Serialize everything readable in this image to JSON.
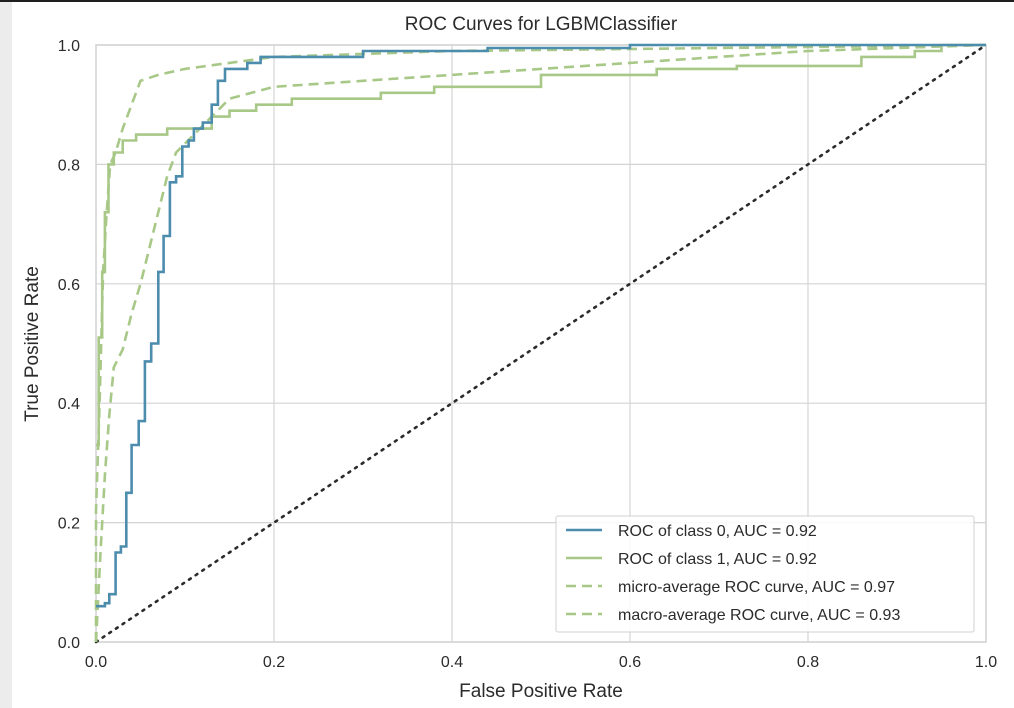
{
  "chart_data": {
    "type": "line",
    "title": "ROC Curves for LGBMClassifier",
    "xlabel": "False Positive Rate",
    "ylabel": "True Positive Rate",
    "xlim": [
      0,
      1
    ],
    "ylim": [
      0,
      1
    ],
    "xticks": [
      "0.0",
      "0.2",
      "0.4",
      "0.6",
      "0.8",
      "1.0"
    ],
    "yticks": [
      "0.0",
      "0.2",
      "0.4",
      "0.6",
      "0.8",
      "1.0"
    ],
    "grid": true,
    "legend_position": "lower-right",
    "series": [
      {
        "name": "ROC of class 0, AUC = 0.92",
        "color": "#4c8cad",
        "dash": "solid",
        "points": [
          [
            0,
            0.06
          ],
          [
            0.01,
            0.06
          ],
          [
            0.01,
            0.065
          ],
          [
            0.015,
            0.065
          ],
          [
            0.015,
            0.08
          ],
          [
            0.022,
            0.08
          ],
          [
            0.022,
            0.15
          ],
          [
            0.028,
            0.15
          ],
          [
            0.028,
            0.16
          ],
          [
            0.034,
            0.16
          ],
          [
            0.034,
            0.25
          ],
          [
            0.04,
            0.25
          ],
          [
            0.04,
            0.33
          ],
          [
            0.048,
            0.33
          ],
          [
            0.048,
            0.37
          ],
          [
            0.055,
            0.37
          ],
          [
            0.055,
            0.47
          ],
          [
            0.062,
            0.47
          ],
          [
            0.062,
            0.5
          ],
          [
            0.07,
            0.5
          ],
          [
            0.07,
            0.62
          ],
          [
            0.076,
            0.62
          ],
          [
            0.076,
            0.68
          ],
          [
            0.083,
            0.68
          ],
          [
            0.083,
            0.77
          ],
          [
            0.09,
            0.77
          ],
          [
            0.09,
            0.78
          ],
          [
            0.097,
            0.78
          ],
          [
            0.097,
            0.83
          ],
          [
            0.104,
            0.83
          ],
          [
            0.104,
            0.84
          ],
          [
            0.11,
            0.84
          ],
          [
            0.11,
            0.86
          ],
          [
            0.12,
            0.86
          ],
          [
            0.12,
            0.87
          ],
          [
            0.13,
            0.87
          ],
          [
            0.13,
            0.9
          ],
          [
            0.137,
            0.9
          ],
          [
            0.137,
            0.94
          ],
          [
            0.145,
            0.94
          ],
          [
            0.145,
            0.96
          ],
          [
            0.17,
            0.96
          ],
          [
            0.17,
            0.97
          ],
          [
            0.185,
            0.97
          ],
          [
            0.185,
            0.98
          ],
          [
            0.3,
            0.98
          ],
          [
            0.3,
            0.99
          ],
          [
            0.44,
            0.99
          ],
          [
            0.44,
            0.995
          ],
          [
            0.6,
            0.995
          ],
          [
            0.6,
            1.0
          ],
          [
            1.0,
            1.0
          ]
        ]
      },
      {
        "name": "ROC of class 1, AUC = 0.92",
        "color": "#a8c888",
        "dash": "solid",
        "points": [
          [
            0,
            0.33
          ],
          [
            0.003,
            0.33
          ],
          [
            0.003,
            0.51
          ],
          [
            0.007,
            0.51
          ],
          [
            0.007,
            0.62
          ],
          [
            0.01,
            0.62
          ],
          [
            0.01,
            0.72
          ],
          [
            0.014,
            0.72
          ],
          [
            0.014,
            0.8
          ],
          [
            0.02,
            0.8
          ],
          [
            0.02,
            0.82
          ],
          [
            0.03,
            0.82
          ],
          [
            0.03,
            0.84
          ],
          [
            0.045,
            0.84
          ],
          [
            0.045,
            0.85
          ],
          [
            0.08,
            0.85
          ],
          [
            0.08,
            0.86
          ],
          [
            0.13,
            0.86
          ],
          [
            0.13,
            0.88
          ],
          [
            0.15,
            0.88
          ],
          [
            0.15,
            0.89
          ],
          [
            0.18,
            0.89
          ],
          [
            0.18,
            0.9
          ],
          [
            0.22,
            0.9
          ],
          [
            0.22,
            0.91
          ],
          [
            0.32,
            0.91
          ],
          [
            0.32,
            0.92
          ],
          [
            0.38,
            0.92
          ],
          [
            0.38,
            0.93
          ],
          [
            0.5,
            0.93
          ],
          [
            0.5,
            0.95
          ],
          [
            0.63,
            0.95
          ],
          [
            0.63,
            0.96
          ],
          [
            0.72,
            0.96
          ],
          [
            0.72,
            0.965
          ],
          [
            0.86,
            0.965
          ],
          [
            0.86,
            0.98
          ],
          [
            0.92,
            0.98
          ],
          [
            0.92,
            0.99
          ],
          [
            0.95,
            0.99
          ],
          [
            0.95,
            1.0
          ],
          [
            1.0,
            1.0
          ]
        ]
      },
      {
        "name": "micro-average ROC curve, AUC = 0.97",
        "color": "#a8c888",
        "dash": "dashed",
        "points": [
          [
            0,
            0
          ],
          [
            0,
            0.22
          ],
          [
            0.004,
            0.4
          ],
          [
            0.008,
            0.62
          ],
          [
            0.012,
            0.72
          ],
          [
            0.016,
            0.8
          ],
          [
            0.022,
            0.82
          ],
          [
            0.03,
            0.86
          ],
          [
            0.04,
            0.9
          ],
          [
            0.05,
            0.94
          ],
          [
            0.07,
            0.95
          ],
          [
            0.1,
            0.96
          ],
          [
            0.2,
            0.98
          ],
          [
            0.4,
            0.99
          ],
          [
            0.7,
            0.995
          ],
          [
            1,
            1
          ]
        ]
      },
      {
        "name": "macro-average ROC curve, AUC = 0.93",
        "color": "#a8c888",
        "dash": "dashed",
        "points": [
          [
            0,
            0
          ],
          [
            0.005,
            0.15
          ],
          [
            0.01,
            0.28
          ],
          [
            0.015,
            0.38
          ],
          [
            0.02,
            0.46
          ],
          [
            0.03,
            0.49
          ],
          [
            0.04,
            0.55
          ],
          [
            0.05,
            0.6
          ],
          [
            0.06,
            0.66
          ],
          [
            0.07,
            0.72
          ],
          [
            0.08,
            0.78
          ],
          [
            0.09,
            0.82
          ],
          [
            0.11,
            0.85
          ],
          [
            0.13,
            0.88
          ],
          [
            0.15,
            0.91
          ],
          [
            0.2,
            0.93
          ],
          [
            0.3,
            0.94
          ],
          [
            0.4,
            0.95
          ],
          [
            0.5,
            0.96
          ],
          [
            0.6,
            0.97
          ],
          [
            0.7,
            0.98
          ],
          [
            0.8,
            0.99
          ],
          [
            0.9,
            0.995
          ],
          [
            1,
            1
          ]
        ]
      },
      {
        "name": "",
        "color": "#2b2b2b",
        "dash": "dotted",
        "points": [
          [
            0,
            0
          ],
          [
            1,
            1
          ]
        ]
      }
    ]
  }
}
